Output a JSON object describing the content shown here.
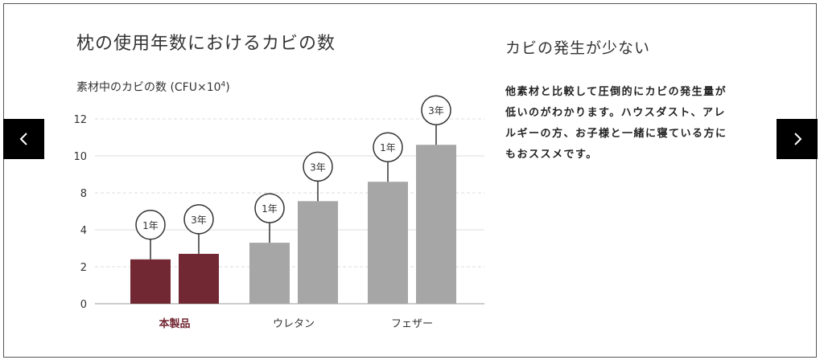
{
  "title": "枕の使用年数におけるカビの数",
  "description": {
    "heading": "カビの発生が少ない",
    "lines": [
      "他素材と比較して圧倒的にカビの発生量が",
      "低いのがわかります。ハウスダスト、アレ",
      "ルギーの方、お子様と一緒に寝ている方に",
      "もおススメです。"
    ]
  },
  "nav": {
    "prev_icon": "chevron-left-icon",
    "next_icon": "chevron-right-icon"
  },
  "colors": {
    "product": "#722833",
    "other": "#a6a6a6",
    "product_label": "#722833"
  },
  "chart_data": {
    "type": "bar",
    "title": "枕の使用年数におけるカビの数",
    "ylabel_main": "素材中のカビの数 (CFU×10",
    "ylabel_sup": "4",
    "ylabel_close": ")",
    "yticks": [
      "0",
      "2",
      "4",
      "8",
      "10",
      "12"
    ],
    "ylim": [
      0,
      12
    ],
    "categories": [
      "本製品",
      "ウレタン",
      "フェザー"
    ],
    "series": [
      {
        "name": "1年",
        "values": [
          2.4,
          3.3,
          8.6
        ]
      },
      {
        "name": "3年",
        "values": [
          2.7,
          7.1,
          10.6
        ]
      }
    ]
  }
}
